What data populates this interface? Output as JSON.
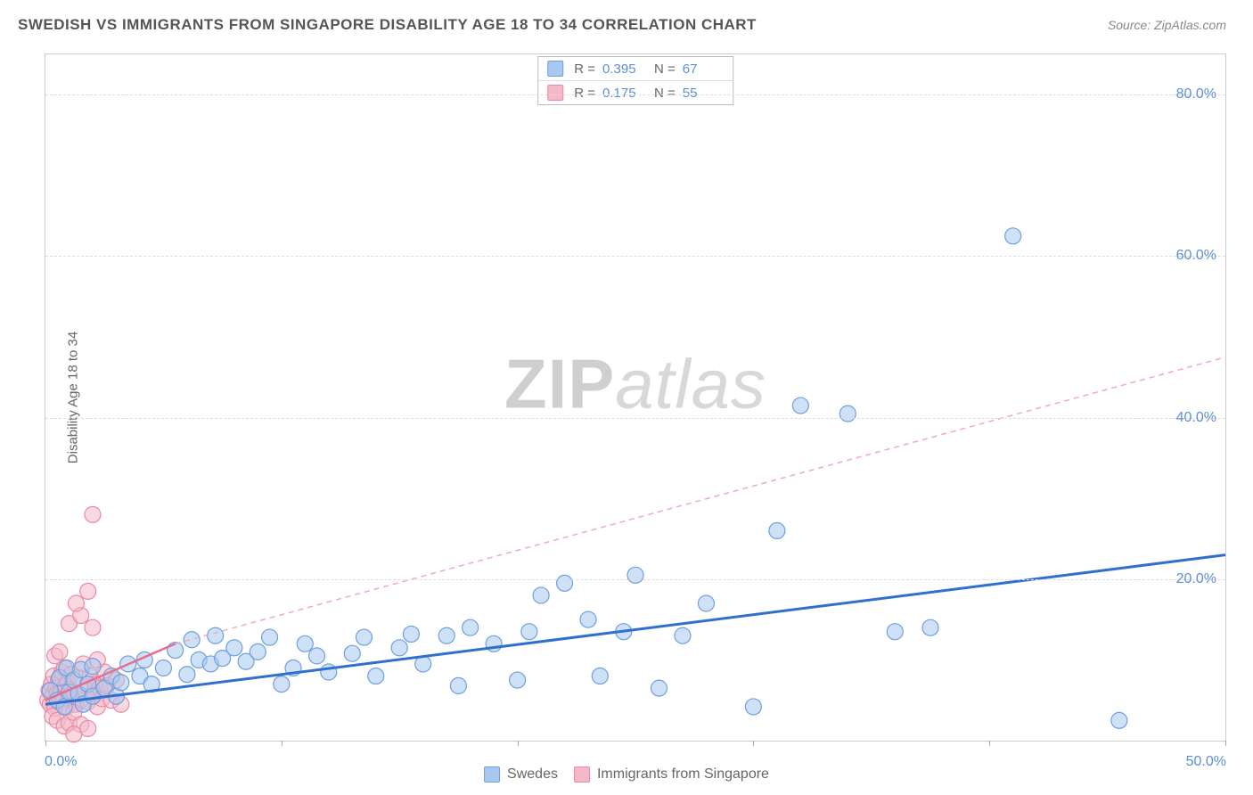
{
  "header": {
    "title": "SWEDISH VS IMMIGRANTS FROM SINGAPORE DISABILITY AGE 18 TO 34 CORRELATION CHART",
    "source": "Source: ZipAtlas.com"
  },
  "ylabel": "Disability Age 18 to 34",
  "watermark": {
    "part1": "ZIP",
    "part2": "atlas"
  },
  "chart": {
    "type": "scatter",
    "xlim": [
      0,
      50
    ],
    "ylim": [
      0,
      85
    ],
    "x_ticks": [
      0,
      10,
      20,
      30,
      40,
      50
    ],
    "x_tick_labels": [
      "0.0%",
      "",
      "",
      "",
      "",
      "50.0%"
    ],
    "y_ticks": [
      20,
      40,
      60,
      80
    ],
    "y_tick_labels": [
      "20.0%",
      "40.0%",
      "60.0%",
      "80.0%"
    ],
    "grid_color": "#dddddd",
    "background_color": "#ffffff",
    "marker_radius": 9,
    "marker_opacity": 0.55,
    "series": [
      {
        "key": "swedes",
        "label": "Swedes",
        "fill": "#a8c8ef",
        "stroke": "#6f9fde",
        "r_value": "0.395",
        "n_value": "67",
        "trend": {
          "x1": 0,
          "y1": 4.5,
          "x2": 50,
          "y2": 23,
          "color": "#2f6fd0",
          "width": 3,
          "dash": ""
        },
        "points": [
          [
            0.2,
            6.2
          ],
          [
            0.5,
            5.0
          ],
          [
            0.6,
            7.8
          ],
          [
            0.8,
            4.2
          ],
          [
            0.9,
            9.0
          ],
          [
            1.0,
            6.0
          ],
          [
            1.2,
            7.5
          ],
          [
            1.4,
            5.8
          ],
          [
            1.5,
            8.8
          ],
          [
            1.6,
            4.5
          ],
          [
            1.8,
            7.0
          ],
          [
            2.0,
            9.2
          ],
          [
            2.0,
            5.5
          ],
          [
            2.5,
            6.5
          ],
          [
            2.8,
            8.0
          ],
          [
            3.0,
            5.5
          ],
          [
            3.2,
            7.2
          ],
          [
            3.5,
            9.5
          ],
          [
            4.0,
            8.0
          ],
          [
            4.2,
            10.0
          ],
          [
            4.5,
            7.0
          ],
          [
            5.0,
            9.0
          ],
          [
            5.5,
            11.2
          ],
          [
            6.0,
            8.2
          ],
          [
            6.2,
            12.5
          ],
          [
            6.5,
            10.0
          ],
          [
            7.0,
            9.5
          ],
          [
            7.2,
            13.0
          ],
          [
            7.5,
            10.2
          ],
          [
            8.0,
            11.5
          ],
          [
            8.5,
            9.8
          ],
          [
            9.0,
            11.0
          ],
          [
            9.5,
            12.8
          ],
          [
            10.0,
            7.0
          ],
          [
            10.5,
            9.0
          ],
          [
            11.0,
            12.0
          ],
          [
            11.5,
            10.5
          ],
          [
            12.0,
            8.5
          ],
          [
            13.0,
            10.8
          ],
          [
            13.5,
            12.8
          ],
          [
            14.0,
            8.0
          ],
          [
            15.0,
            11.5
          ],
          [
            15.5,
            13.2
          ],
          [
            16.0,
            9.5
          ],
          [
            17.0,
            13.0
          ],
          [
            17.5,
            6.8
          ],
          [
            18.0,
            14.0
          ],
          [
            19.0,
            12.0
          ],
          [
            20.0,
            7.5
          ],
          [
            20.5,
            13.5
          ],
          [
            21.0,
            18.0
          ],
          [
            22.0,
            19.5
          ],
          [
            23.0,
            15.0
          ],
          [
            23.5,
            8.0
          ],
          [
            24.5,
            13.5
          ],
          [
            25.0,
            20.5
          ],
          [
            26.0,
            6.5
          ],
          [
            27.0,
            13.0
          ],
          [
            28.0,
            17.0
          ],
          [
            30.0,
            4.2
          ],
          [
            31.0,
            26.0
          ],
          [
            32.0,
            41.5
          ],
          [
            34.0,
            40.5
          ],
          [
            36.0,
            13.5
          ],
          [
            41.0,
            62.5
          ],
          [
            45.5,
            2.5
          ],
          [
            37.5,
            14.0
          ]
        ]
      },
      {
        "key": "immigrants",
        "label": "Immigrants from Singapore",
        "fill": "#f4b8c8",
        "stroke": "#e98aa5",
        "r_value": "0.175",
        "n_value": "55",
        "trend_solid": {
          "x1": 0,
          "y1": 5.0,
          "x2": 5.5,
          "y2": 12.0,
          "color": "#e76f91",
          "width": 2.5,
          "dash": ""
        },
        "trend_dashed": {
          "x1": 5.5,
          "y1": 12.0,
          "x2": 50,
          "y2": 47.5,
          "color": "#f0aabb",
          "width": 1.5,
          "dash": "6,5"
        },
        "points": [
          [
            0.1,
            5.0
          ],
          [
            0.15,
            6.2
          ],
          [
            0.2,
            4.5
          ],
          [
            0.25,
            7.0
          ],
          [
            0.3,
            5.5
          ],
          [
            0.35,
            8.0
          ],
          [
            0.4,
            4.0
          ],
          [
            0.45,
            6.5
          ],
          [
            0.5,
            5.8
          ],
          [
            0.55,
            7.5
          ],
          [
            0.6,
            4.8
          ],
          [
            0.65,
            6.0
          ],
          [
            0.7,
            8.5
          ],
          [
            0.75,
            5.2
          ],
          [
            0.8,
            9.0
          ],
          [
            0.85,
            6.8
          ],
          [
            0.9,
            4.2
          ],
          [
            0.95,
            7.2
          ],
          [
            1.0,
            5.5
          ],
          [
            1.1,
            8.2
          ],
          [
            1.2,
            6.0
          ],
          [
            1.3,
            4.5
          ],
          [
            1.4,
            7.8
          ],
          [
            1.5,
            5.0
          ],
          [
            1.6,
            9.5
          ],
          [
            1.7,
            6.2
          ],
          [
            1.8,
            4.8
          ],
          [
            1.9,
            8.0
          ],
          [
            2.0,
            5.8
          ],
          [
            2.1,
            7.0
          ],
          [
            2.2,
            4.2
          ],
          [
            2.3,
            6.5
          ],
          [
            2.4,
            5.2
          ],
          [
            2.5,
            8.5
          ],
          [
            2.6,
            6.8
          ],
          [
            2.8,
            5.0
          ],
          [
            3.0,
            7.5
          ],
          [
            3.2,
            4.5
          ],
          [
            0.3,
            3.0
          ],
          [
            0.5,
            2.5
          ],
          [
            0.8,
            1.8
          ],
          [
            1.0,
            2.2
          ],
          [
            1.2,
            3.5
          ],
          [
            1.5,
            2.0
          ],
          [
            1.2,
            0.8
          ],
          [
            1.8,
            1.5
          ],
          [
            0.4,
            10.5
          ],
          [
            0.6,
            11.0
          ],
          [
            1.0,
            14.5
          ],
          [
            1.5,
            15.5
          ],
          [
            1.3,
            17.0
          ],
          [
            2.0,
            14.0
          ],
          [
            1.8,
            18.5
          ],
          [
            2.2,
            10.0
          ],
          [
            2.0,
            28.0
          ]
        ]
      }
    ]
  },
  "stats_legend_labels": {
    "r": "R =",
    "n": "N ="
  },
  "footer_legend": {
    "items": [
      {
        "label": "Swedes",
        "fill": "#a8c8ef",
        "stroke": "#6f9fde"
      },
      {
        "label": "Immigrants from Singapore",
        "fill": "#f4b8c8",
        "stroke": "#e98aa5"
      }
    ]
  }
}
